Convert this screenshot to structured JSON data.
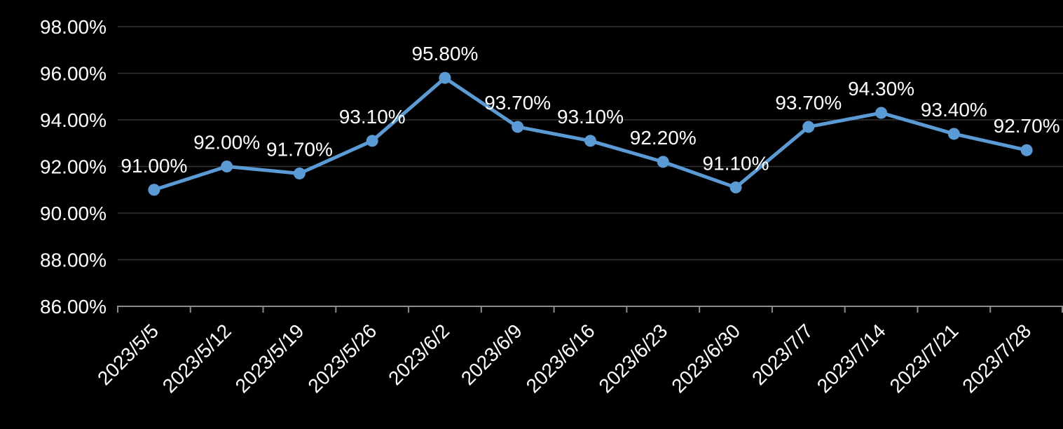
{
  "chart_data": {
    "type": "line",
    "title": "",
    "xlabel": "",
    "ylabel": "",
    "categories": [
      "2023/5/5",
      "2023/5/12",
      "2023/5/19",
      "2023/5/26",
      "2023/6/2",
      "2023/6/9",
      "2023/6/16",
      "2023/6/23",
      "2023/6/30",
      "2023/7/7",
      "2023/7/14",
      "2023/7/21",
      "2023/7/28"
    ],
    "series": [
      {
        "values": [
          91.0,
          92.0,
          91.7,
          93.1,
          95.8,
          93.7,
          93.1,
          92.2,
          91.1,
          93.7,
          94.3,
          93.4,
          92.7
        ],
        "point_labels": [
          "91.00%",
          "92.00%",
          "91.70%",
          "93.10%",
          "95.80%",
          "93.70%",
          "93.10%",
          "92.20%",
          "91.10%",
          "93.70%",
          "94.30%",
          "93.40%",
          "92.70%"
        ]
      }
    ],
    "ylim": [
      86,
      98
    ],
    "y_ticks": [
      86,
      88,
      90,
      92,
      94,
      96,
      98
    ],
    "y_tick_labels": [
      "86.00%",
      "88.00%",
      "90.00%",
      "92.00%",
      "94.00%",
      "96.00%",
      "98.00%"
    ],
    "x_label_rotation_deg": 45,
    "grid": true,
    "legend_position": "none"
  },
  "style": {
    "background_color": "#000000",
    "line_color": "#5B9BD5",
    "marker_color": "#5B9BD5",
    "text_color": "#FFFFFF",
    "gridline_color": "#333333",
    "axis_color": "#8C8C8C"
  }
}
